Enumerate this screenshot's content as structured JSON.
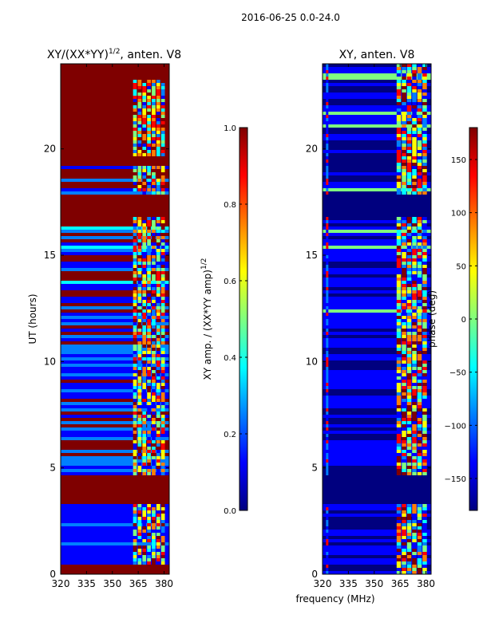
{
  "figure": {
    "suptitle": "2016-06-25 0.0-24.0",
    "xlabel": "frequency (MHz)"
  },
  "colors": {
    "jet": [
      "#00007f",
      "#0000ff",
      "#007fff",
      "#00ffff",
      "#7fff7f",
      "#ffff00",
      "#ff7f00",
      "#ff0000",
      "#7f0000"
    ]
  },
  "chart_data": [
    {
      "type": "heatmap",
      "title": "XY/(XX*YY)^1/2, anten. V8",
      "title_main": "XY/(XX*YY)",
      "title_sup": "1/2",
      "title_tail": ", anten. V8",
      "xlabel": "",
      "ylabel": "UT (hours)",
      "x_range": [
        320,
        383
      ],
      "y_range": [
        0,
        24
      ],
      "x_ticks": [
        320,
        335,
        350,
        365,
        380
      ],
      "x_tick_labels": [
        "320",
        "335",
        "350",
        "365",
        "380"
      ],
      "y_ticks": [
        0,
        5,
        10,
        15,
        20
      ],
      "y_tick_labels": [
        "0",
        "5",
        "10",
        "15",
        "20"
      ],
      "colorbar": {
        "label": "XY amp. / (XX*YY amp)^1/2",
        "label_main": "XY amp. / (XX*YY amp)",
        "label_sup": "1/2",
        "range": [
          0.0,
          1.0
        ],
        "ticks": [
          0.0,
          0.2,
          0.4,
          0.6,
          0.8,
          1.0
        ],
        "tick_labels": [
          "0.0",
          "0.2",
          "0.4",
          "0.6",
          "0.8",
          "1.0"
        ]
      },
      "saturated_bands_hours": [
        [
          0.0,
          0.4
        ],
        [
          3.3,
          4.6
        ],
        [
          16.8,
          17.8
        ],
        [
          19.2,
          19.6
        ],
        [
          23.2,
          24.0
        ]
      ],
      "active_freq_range_mhz": [
        362,
        381
      ]
    },
    {
      "type": "heatmap",
      "title": "XY, anten. V8",
      "xlabel": "frequency (MHz)",
      "ylabel": "",
      "x_range": [
        320,
        383
      ],
      "y_range": [
        0,
        24
      ],
      "x_ticks": [
        320,
        335,
        350,
        365,
        380
      ],
      "x_tick_labels": [
        "320",
        "335",
        "350",
        "365",
        "380"
      ],
      "y_ticks": [
        0,
        5,
        10,
        15,
        20
      ],
      "y_tick_labels": [
        "0",
        "5",
        "10",
        "15",
        "20"
      ],
      "colorbar": {
        "label": "phase (deg)",
        "range": [
          -180,
          180
        ],
        "ticks": [
          -150,
          -100,
          -50,
          0,
          50,
          100,
          150
        ],
        "tick_labels": [
          "−150",
          "−100",
          "−50",
          "0",
          "50",
          "100",
          "150"
        ]
      },
      "dark_bands_hours": [
        [
          3.3,
          4.6
        ],
        [
          16.8,
          17.8
        ]
      ],
      "active_freq_range_mhz": [
        363,
        381
      ]
    }
  ]
}
